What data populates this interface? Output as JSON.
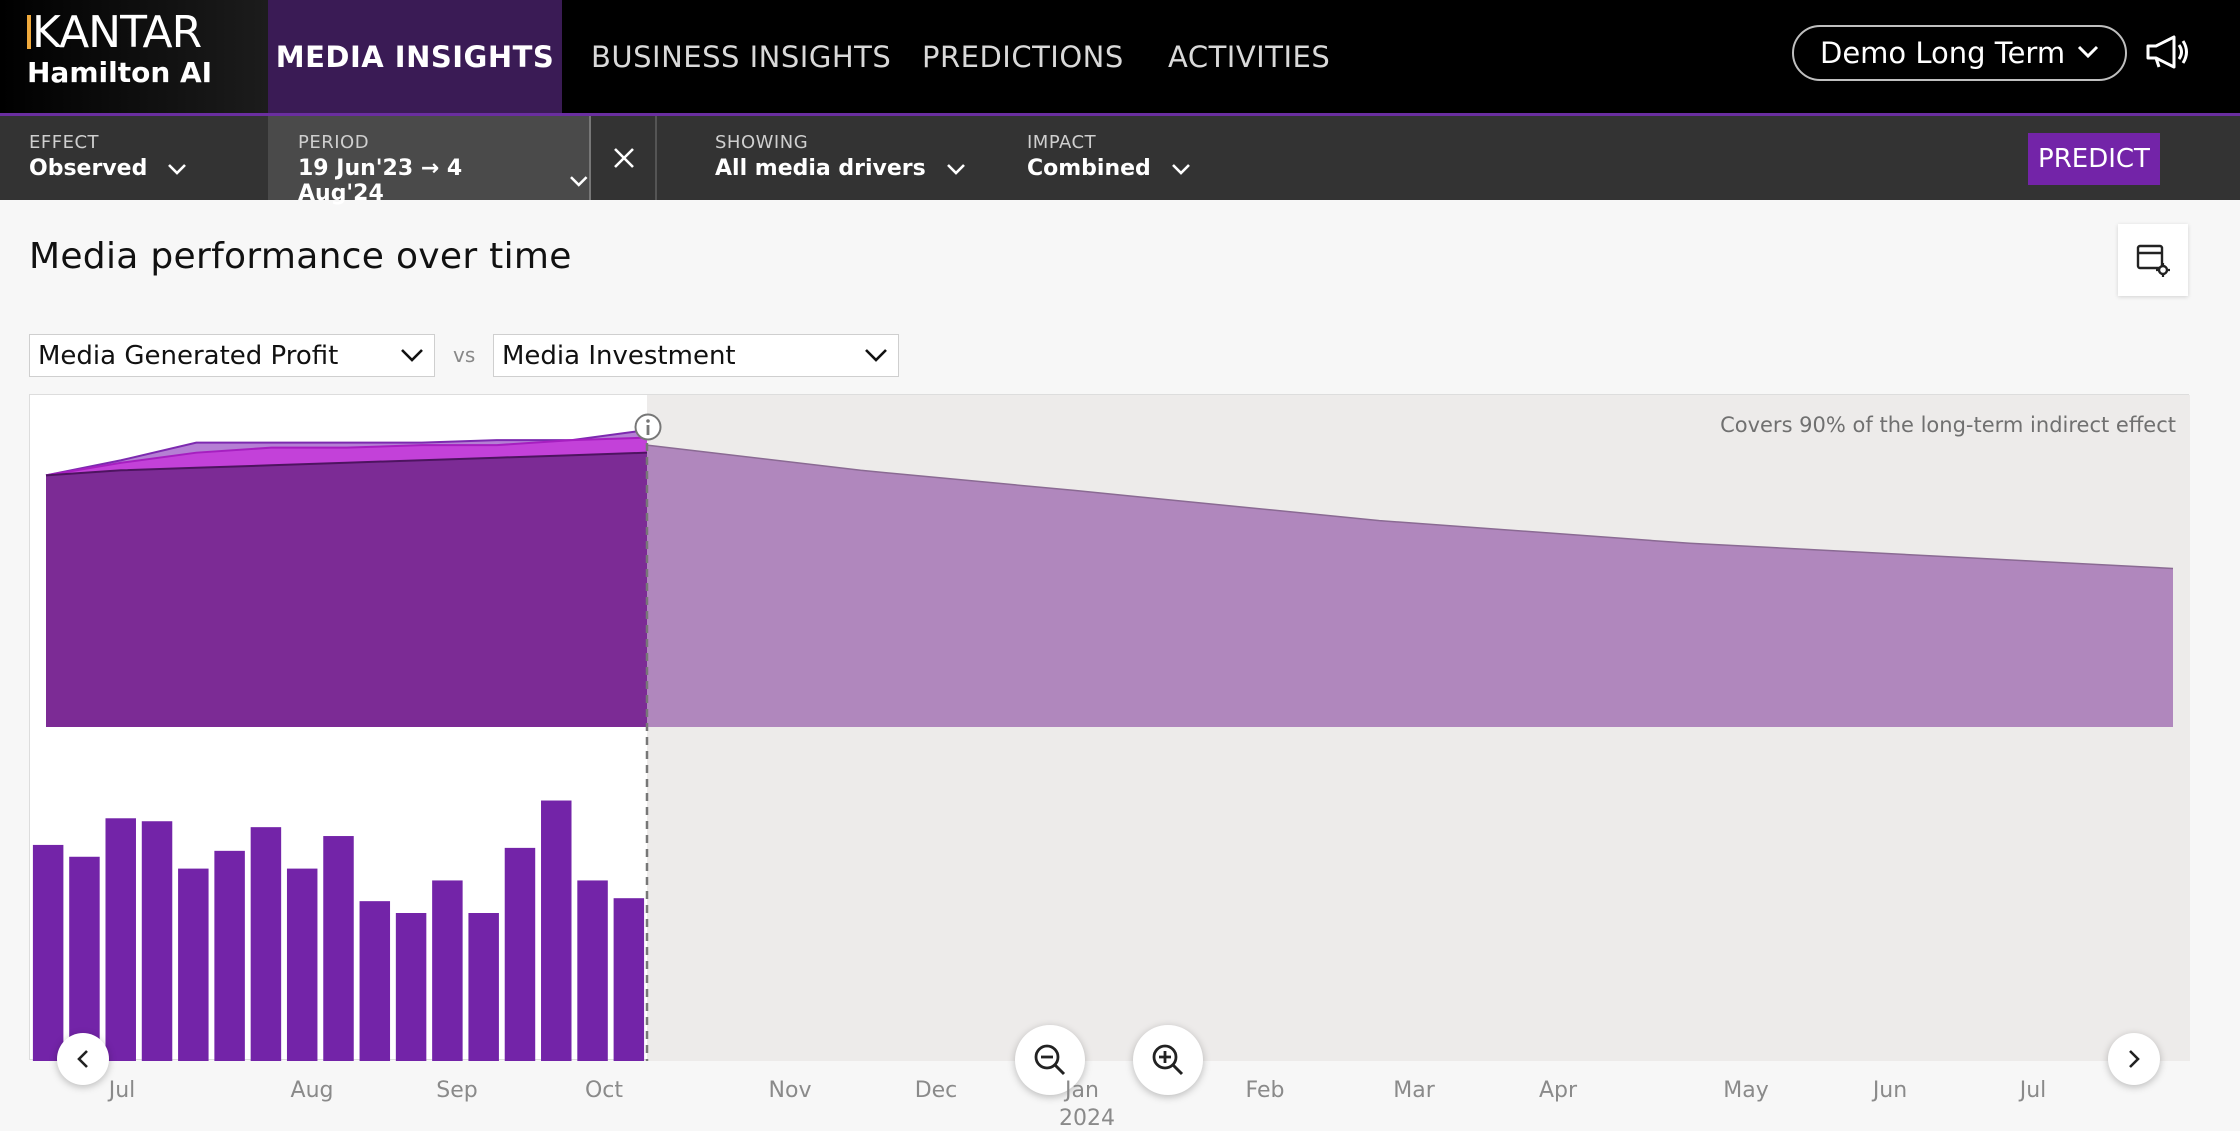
{
  "brand": {
    "logo": "KANTAR",
    "product": "Hamilton AI"
  },
  "nav": {
    "tabs": [
      {
        "label": "MEDIA INSIGHTS",
        "active": true
      },
      {
        "label": "BUSINESS INSIGHTS",
        "active": false
      },
      {
        "label": "PREDICTIONS",
        "active": false
      },
      {
        "label": "ACTIVITIES",
        "active": false
      }
    ],
    "tenant": "Demo Long Term"
  },
  "filters": {
    "effect": {
      "label": "EFFECT",
      "value": "Observed"
    },
    "period": {
      "label": "PERIOD",
      "value": "19 Jun'23 → 4 Aug'24"
    },
    "showing": {
      "label": "SHOWING",
      "value": "All media drivers"
    },
    "impact": {
      "label": "IMPACT",
      "value": "Combined"
    },
    "predict_label": "PREDICT"
  },
  "main": {
    "title": "Media performance over time",
    "metric_left": "Media Generated Profit",
    "vs": "vs",
    "metric_right": "Media Investment",
    "covers_note": "Covers 90% of the long-term indirect effect"
  },
  "icons": {
    "tenant_dropdown": "chevron-down-icon",
    "announcements": "megaphone-icon",
    "clear_period": "close-icon",
    "chart_settings": "table-settings-icon",
    "info": "info-icon",
    "zoom_out": "zoom-out-icon",
    "zoom_in": "zoom-in-icon",
    "prev": "chevron-left-icon",
    "next": "chevron-right-icon"
  },
  "colors": {
    "accent": "#7324a8",
    "area_top": "#b57fd4",
    "area_mid": "#c341d9",
    "area_base": "#7c2b95",
    "forecast_area": "#b087bd",
    "bars": "#7324a8"
  },
  "chart_data": {
    "type": "area",
    "xaxis": {
      "ticks": [
        "Jul",
        "Aug",
        "Sep",
        "Oct",
        "Nov",
        "Dec",
        "Jan",
        "Feb",
        "Mar",
        "Apr",
        "May",
        "Jun",
        "Jul"
      ],
      "year_label": "2024"
    },
    "observed_area": {
      "x": [
        "2023-06-19",
        "2023-07-03",
        "2023-07-17",
        "2023-07-31",
        "2023-08-14",
        "2023-08-28",
        "2023-09-11",
        "2023-09-25",
        "2023-10-09"
      ],
      "series": [
        {
          "key": "base",
          "values": [
            100,
            102,
            103,
            104,
            105,
            106,
            107,
            108,
            109
          ]
        },
        {
          "key": "mid",
          "values": [
            100,
            105,
            109,
            111,
            111,
            112,
            112,
            114,
            115
          ]
        },
        {
          "key": "top",
          "values": [
            100,
            106,
            113,
            113,
            113,
            113,
            114,
            114,
            118
          ]
        }
      ],
      "ylim": [
        0,
        120
      ]
    },
    "forecast_area": {
      "x": [
        "2023-10-09",
        "2023-11-20",
        "2024-01-01",
        "2024-03-01",
        "2024-05-01",
        "2024-08-04"
      ],
      "values": [
        112,
        102,
        94,
        82,
        73,
        63
      ]
    },
    "investment_bars": {
      "values": [
        73,
        69,
        82,
        81,
        65,
        71,
        79,
        65,
        76,
        54,
        50,
        61,
        50,
        72,
        88,
        61,
        55
      ],
      "ylim": [
        0,
        100
      ]
    },
    "cutoff": "2023-10-09"
  }
}
